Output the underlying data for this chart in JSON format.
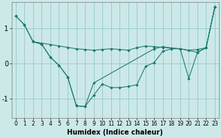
{
  "xlabel": "Humidex (Indice chaleur)",
  "background_color": "#cce8e8",
  "grid_color": "#99cccc",
  "line_color": "#1a7a6e",
  "xlim": [
    -0.5,
    23.5
  ],
  "ylim": [
    -1.55,
    1.75
  ],
  "yticks": [
    -1,
    0,
    1
  ],
  "xticks": [
    0,
    1,
    2,
    3,
    4,
    5,
    6,
    7,
    8,
    9,
    10,
    11,
    12,
    13,
    14,
    15,
    16,
    17,
    18,
    19,
    20,
    21,
    22,
    23
  ],
  "series": [
    {
      "x": [
        0,
        1,
        2,
        3,
        4,
        5,
        6,
        7,
        8,
        9,
        10,
        11,
        12,
        13,
        14,
        15,
        16,
        17,
        18,
        19,
        20,
        21,
        22,
        23
      ],
      "y": [
        1.35,
        1.1,
        0.62,
        0.58,
        0.54,
        0.5,
        0.46,
        0.42,
        0.4,
        0.38,
        0.4,
        0.42,
        0.4,
        0.38,
        0.45,
        0.5,
        0.48,
        0.46,
        0.44,
        0.42,
        0.38,
        0.4,
        0.45,
        1.6
      ]
    },
    {
      "x": [
        0,
        1,
        2,
        3,
        4,
        5,
        6,
        7,
        8,
        9,
        10,
        11,
        12,
        13,
        14,
        15,
        16,
        17,
        18,
        19,
        20,
        21,
        22,
        23
      ],
      "y": [
        1.35,
        1.1,
        0.62,
        0.55,
        0.18,
        -0.05,
        -0.38,
        -1.2,
        -1.22,
        -0.9,
        -0.58,
        -0.68,
        -0.68,
        -0.65,
        -0.6,
        -0.08,
        0.03,
        0.35,
        0.42,
        0.42,
        -0.42,
        0.32,
        0.45,
        1.6
      ]
    },
    {
      "x": [
        2,
        3,
        4,
        5,
        6,
        7,
        8,
        9,
        16,
        17,
        18,
        19,
        21,
        22,
        23
      ],
      "y": [
        0.62,
        0.55,
        0.18,
        -0.05,
        -0.38,
        -1.2,
        -1.22,
        -0.55,
        0.42,
        0.48,
        0.44,
        0.42,
        0.32,
        0.45,
        1.6
      ]
    }
  ]
}
